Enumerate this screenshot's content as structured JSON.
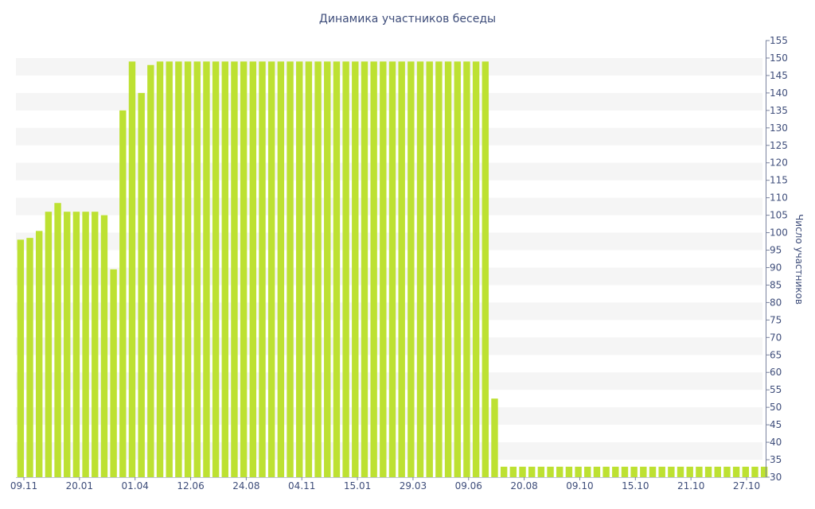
{
  "chart_data": {
    "type": "bar",
    "title": "Динамика участников беседы",
    "xlabel": "",
    "ylabel": "Число участников",
    "ylim": [
      30,
      155
    ],
    "y_ticks": [
      30,
      35,
      40,
      45,
      50,
      55,
      60,
      65,
      70,
      75,
      80,
      85,
      90,
      95,
      100,
      105,
      110,
      115,
      120,
      125,
      130,
      135,
      140,
      145,
      150,
      155
    ],
    "x_tick_labels": [
      "09.11",
      "20.01",
      "01.04",
      "12.06",
      "24.08",
      "04.11",
      "15.01",
      "29.03",
      "09.06",
      "20.08",
      "09.10",
      "15.10",
      "21.10",
      "27.10"
    ],
    "grid": "horizontal alternating bands",
    "bar_color": "#bde132",
    "band_color": "#f5f5f5",
    "text_color": "#3e4d7a",
    "values": [
      98,
      98.5,
      100.5,
      106,
      108.5,
      106,
      106,
      106,
      106,
      105,
      89.5,
      135,
      149,
      140,
      148,
      149,
      149,
      149,
      149,
      149,
      149,
      149,
      149,
      149,
      149,
      149,
      149,
      149,
      149,
      149,
      149,
      149,
      149,
      149,
      149,
      149,
      149,
      149,
      149,
      149,
      149,
      149,
      149,
      149,
      149,
      149,
      149,
      149,
      149,
      149,
      149,
      52.5,
      33,
      33,
      33,
      33,
      33,
      33,
      33,
      33,
      33,
      33,
      33,
      33,
      33,
      33,
      33,
      33,
      33,
      33,
      33,
      33,
      33,
      33,
      33,
      33,
      33,
      33,
      33,
      33,
      33
    ]
  }
}
